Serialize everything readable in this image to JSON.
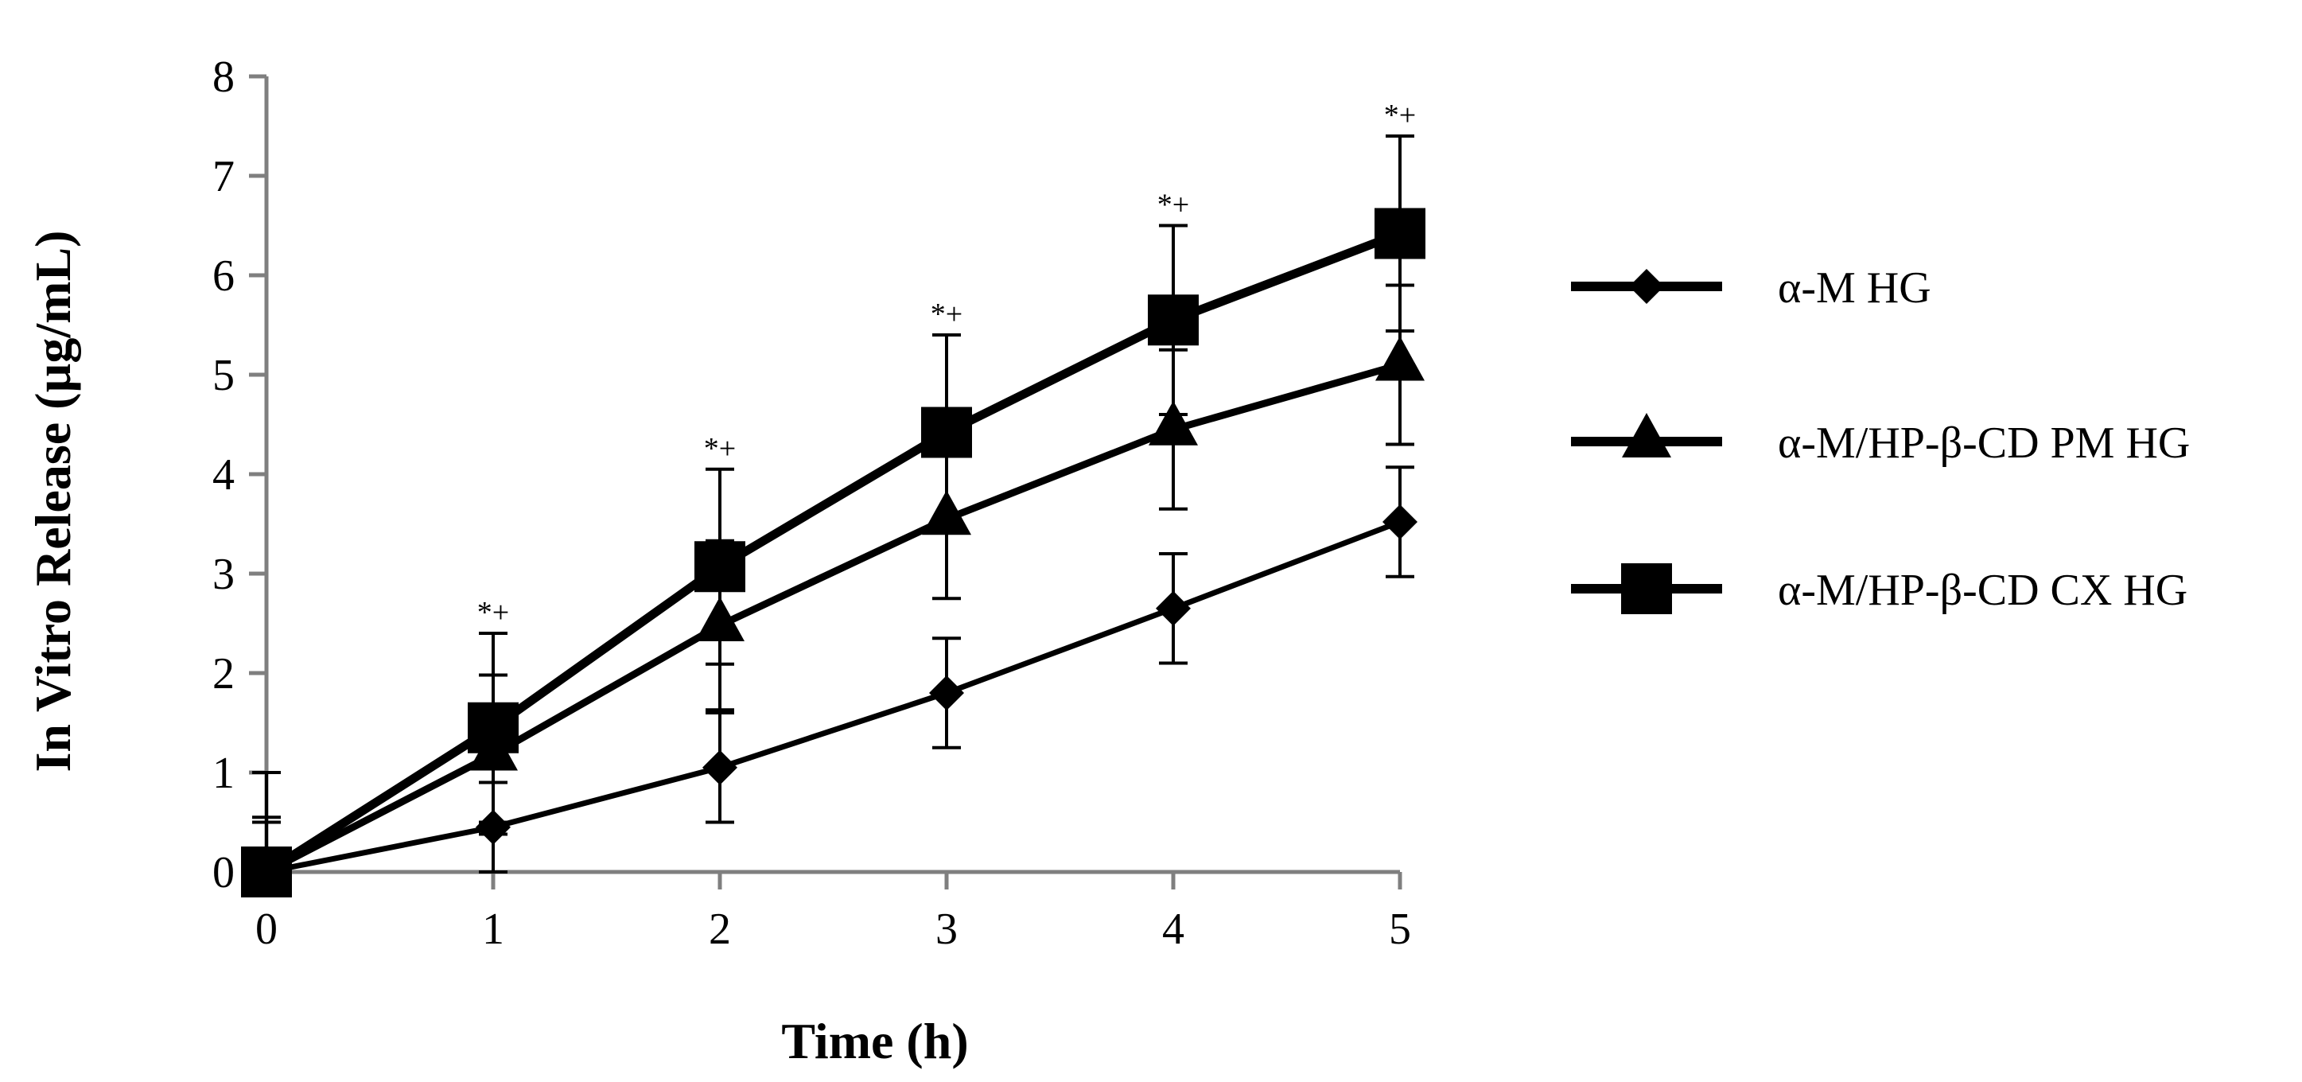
{
  "chart_data": {
    "type": "line",
    "title": "",
    "xlabel": "Time (h)",
    "ylabel": "In Vitro Release (µg/mL)",
    "x": [
      0,
      1,
      2,
      3,
      4,
      5
    ],
    "xlim": [
      0,
      5
    ],
    "ylim": [
      0,
      8
    ],
    "xticks": [
      "0",
      "1",
      "2",
      "3",
      "4",
      "5"
    ],
    "yticks": [
      "0",
      "1",
      "2",
      "3",
      "4",
      "5",
      "6",
      "7",
      "8"
    ],
    "grid": false,
    "legend_position": "right",
    "series": [
      {
        "name": "α-M HG",
        "marker": "diamond",
        "values": [
          0,
          0.45,
          1.05,
          1.8,
          2.65,
          3.52
        ],
        "error": [
          0.5,
          0.45,
          0.55,
          0.55,
          0.55,
          0.55
        ]
      },
      {
        "name": "α-M/HP-β-CD PM HG",
        "marker": "triangle",
        "values": [
          0,
          1.18,
          2.48,
          3.55,
          4.45,
          5.1
        ],
        "error": [
          0.55,
          0.8,
          0.85,
          0.8,
          0.8,
          0.8
        ]
      },
      {
        "name": "α-M/HP-β-CD CX HG",
        "marker": "square",
        "values": [
          0,
          1.45,
          3.07,
          4.42,
          5.55,
          6.42
        ],
        "error": [
          1.0,
          0.95,
          0.98,
          0.98,
          0.95,
          0.98
        ]
      }
    ],
    "annotations": [
      {
        "x": 1,
        "y": 2.4,
        "text": "*+"
      },
      {
        "x": 2,
        "y": 4.05,
        "text": "*+"
      },
      {
        "x": 3,
        "y": 5.4,
        "text": "*+"
      },
      {
        "x": 4,
        "y": 6.5,
        "text": "*+"
      },
      {
        "x": 5,
        "y": 7.4,
        "text": "*+"
      }
    ]
  }
}
